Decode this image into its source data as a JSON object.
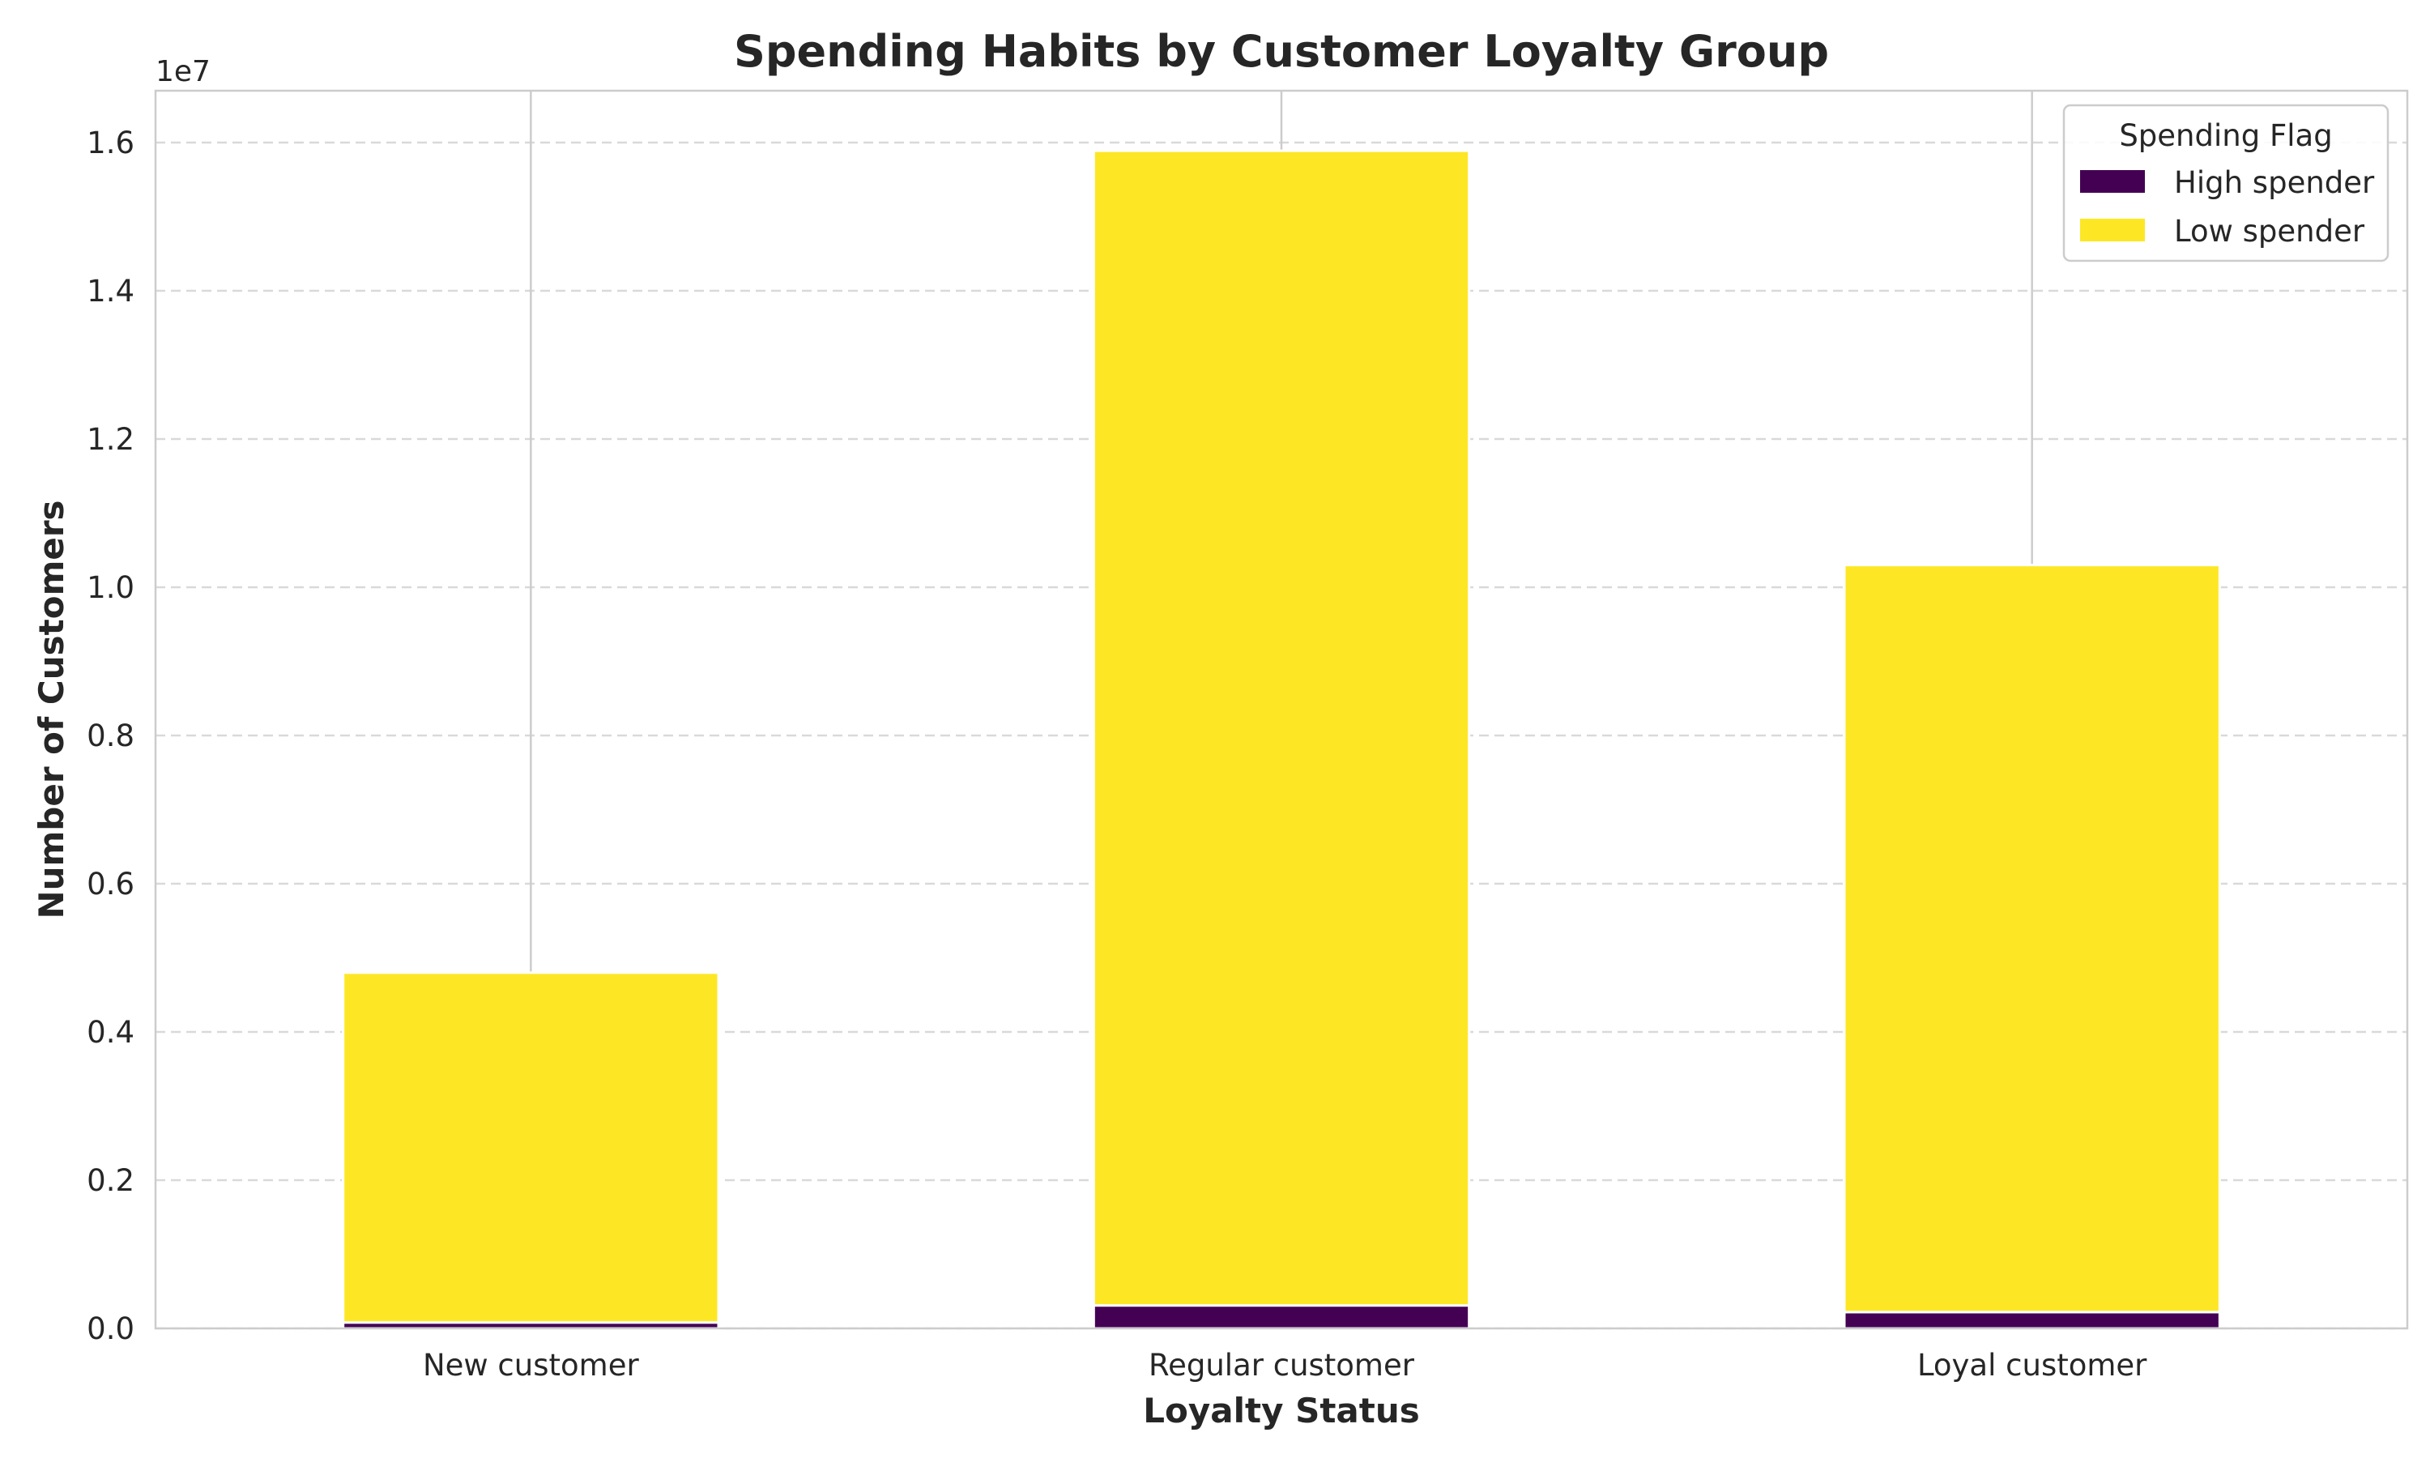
{
  "chart_data": {
    "type": "bar",
    "stacked": true,
    "title": "Spending Habits by Customer Loyalty Group",
    "xlabel": "Loyalty Status",
    "ylabel": "Number of Customers",
    "y_offset_label": "1e7",
    "categories": [
      "New customer",
      "Regular customer",
      "Loyal customer"
    ],
    "series": [
      {
        "name": "High spender",
        "color": "#440154",
        "values": [
          80000,
          310000,
          220000
        ]
      },
      {
        "name": "Low spender",
        "color": "#fde725",
        "values": [
          4720000,
          15580000,
          10080000
        ]
      }
    ],
    "ylim": [
      0,
      16700000
    ],
    "ytick_values": [
      0,
      2000000,
      4000000,
      6000000,
      8000000,
      10000000,
      12000000,
      14000000,
      16000000
    ],
    "ytick_labels": [
      "0.0",
      "0.2",
      "0.4",
      "0.6",
      "0.8",
      "1.0",
      "1.2",
      "1.4",
      "1.6"
    ],
    "grid": {
      "y": true,
      "style": "dashed"
    },
    "legend": {
      "title": "Spending Flag",
      "position": "top-right"
    }
  }
}
